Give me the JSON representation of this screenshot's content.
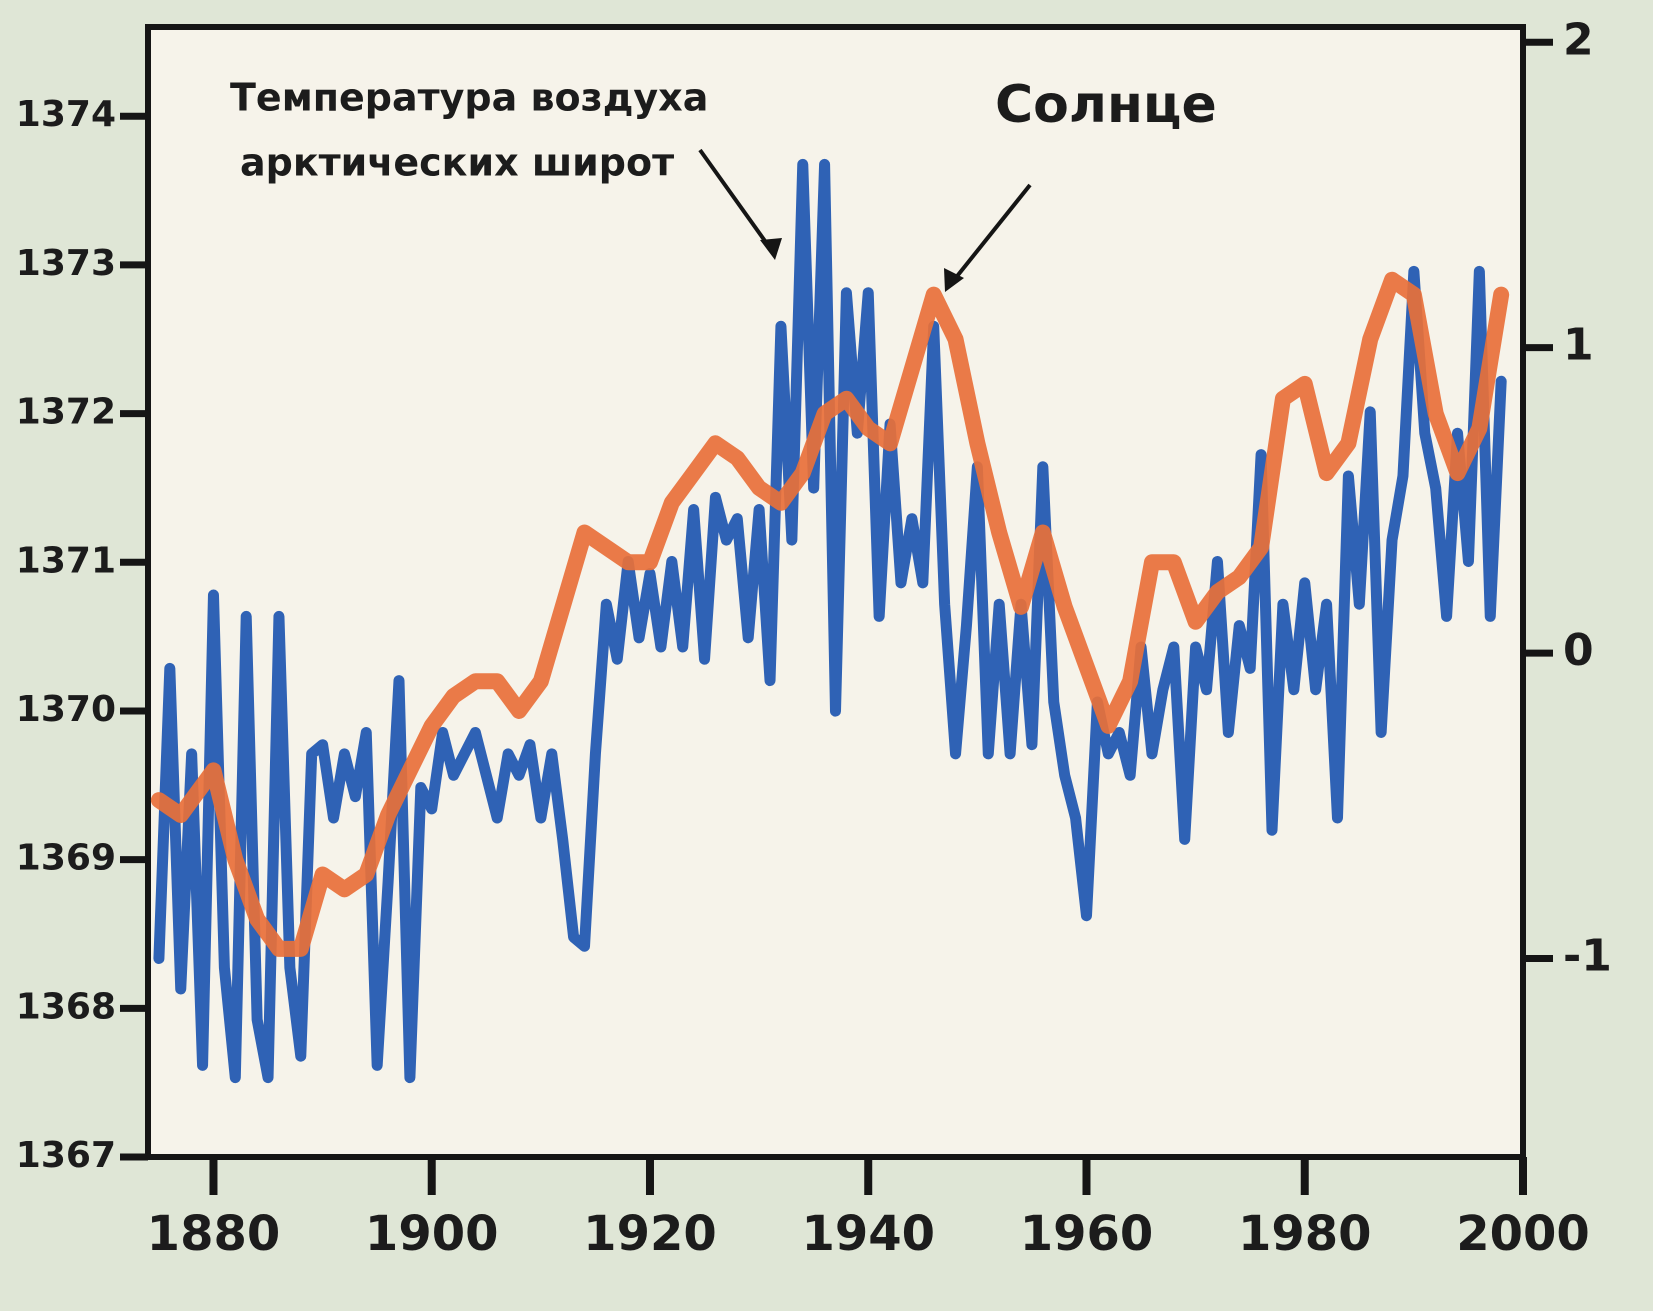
{
  "chart_data": {
    "type": "line",
    "annotations": [
      "Температура воздуха",
      "арктических широт",
      "Солнце"
    ],
    "xlim": [
      1874,
      2000
    ],
    "xticks": [
      1880,
      1900,
      1920,
      1940,
      1960,
      1980,
      2000
    ],
    "ylim": [
      1367,
      1374.6
    ],
    "yticks": [
      1367,
      1368,
      1369,
      1370,
      1371,
      1372,
      1373,
      1374
    ],
    "y2lim": [
      -1.65,
      2.05
    ],
    "y2ticks": [
      -1,
      0,
      1,
      2
    ],
    "series": [
      {
        "color": "#1d56b0",
        "axis": "y2",
        "x": [
          1875,
          1876,
          1877,
          1878,
          1879,
          1880,
          1881,
          1882,
          1883,
          1884,
          1885,
          1886,
          1887,
          1888,
          1889,
          1890,
          1891,
          1892,
          1893,
          1894,
          1895,
          1896,
          1897,
          1898,
          1899,
          1900,
          1901,
          1902,
          1903,
          1904,
          1905,
          1906,
          1907,
          1908,
          1909,
          1910,
          1911,
          1912,
          1913,
          1914,
          1915,
          1916,
          1917,
          1918,
          1919,
          1920,
          1921,
          1922,
          1923,
          1924,
          1925,
          1926,
          1927,
          1928,
          1929,
          1930,
          1931,
          1932,
          1933,
          1934,
          1935,
          1936,
          1937,
          1938,
          1939,
          1940,
          1941,
          1942,
          1943,
          1944,
          1945,
          1946,
          1947,
          1948,
          1949,
          1950,
          1951,
          1952,
          1953,
          1954,
          1955,
          1956,
          1957,
          1958,
          1959,
          1960,
          1961,
          1962,
          1963,
          1964,
          1965,
          1966,
          1967,
          1968,
          1969,
          1970,
          1971,
          1972,
          1973,
          1974,
          1975,
          1976,
          1977,
          1978,
          1979,
          1980,
          1981,
          1982,
          1983,
          1984,
          1985,
          1986,
          1987,
          1988,
          1989,
          1990,
          1991,
          1992,
          1993,
          1994,
          1995,
          1996,
          1997,
          1998
        ],
        "values": [
          -1.0,
          -0.05,
          -1.1,
          -0.33,
          -1.35,
          0.19,
          -1.03,
          -1.39,
          0.12,
          -1.2,
          -1.39,
          0.12,
          -1.03,
          -1.32,
          -0.33,
          -0.3,
          -0.54,
          -0.33,
          -0.47,
          -0.26,
          -1.35,
          -0.75,
          -0.09,
          -1.39,
          -0.44,
          -0.51,
          -0.26,
          -0.4,
          -0.33,
          -0.26,
          -0.4,
          -0.54,
          -0.33,
          -0.4,
          -0.3,
          -0.54,
          -0.33,
          -0.61,
          -0.93,
          -0.96,
          -0.33,
          0.16,
          -0.02,
          0.3,
          0.05,
          0.26,
          0.02,
          0.3,
          0.02,
          0.47,
          -0.02,
          0.51,
          0.37,
          0.44,
          0.05,
          0.47,
          -0.09,
          1.07,
          0.37,
          1.6,
          0.54,
          1.6,
          -0.19,
          1.18,
          0.72,
          1.18,
          0.12,
          0.75,
          0.23,
          0.44,
          0.23,
          1.07,
          0.16,
          -0.33,
          0.09,
          0.61,
          -0.33,
          0.16,
          -0.33,
          0.16,
          -0.3,
          0.61,
          -0.16,
          -0.4,
          -0.54,
          -0.86,
          -0.16,
          -0.33,
          -0.26,
          -0.4,
          0.02,
          -0.33,
          -0.12,
          0.02,
          -0.61,
          0.02,
          -0.12,
          0.3,
          -0.26,
          0.09,
          -0.05,
          0.65,
          -0.58,
          0.16,
          -0.12,
          0.23,
          -0.12,
          0.16,
          -0.54,
          0.58,
          0.16,
          0.79,
          -0.26,
          0.37,
          0.58,
          1.25,
          0.72,
          0.54,
          0.12,
          0.72,
          0.3,
          1.25,
          0.12,
          0.89
        ]
      },
      {
        "color": "#e8703a",
        "x": [
          1875,
          1877,
          1878,
          1880,
          1882,
          1884,
          1886,
          1888,
          1890,
          1892,
          1894,
          1896,
          1898,
          1900,
          1902,
          1904,
          1906,
          1908,
          1910,
          1912,
          1914,
          1916,
          1918,
          1920,
          1922,
          1924,
          1926,
          1928,
          1930,
          1932,
          1934,
          1936,
          1938,
          1940,
          1942,
          1944,
          1946,
          1948,
          1950,
          1952,
          1954,
          1956,
          1958,
          1960,
          1962,
          1964,
          1966,
          1968,
          1970,
          1972,
          1974,
          1976,
          1978,
          1980,
          1982,
          1984,
          1986,
          1988,
          1990,
          1992,
          1994,
          1996,
          1998
        ],
        "values": [
          1369.4,
          1369.3,
          1369.4,
          1369.6,
          1369.0,
          1368.6,
          1368.4,
          1368.4,
          1368.9,
          1368.8,
          1368.9,
          1369.3,
          1369.6,
          1369.9,
          1370.1,
          1370.2,
          1370.2,
          1370.0,
          1370.2,
          1370.7,
          1371.2,
          1371.1,
          1371.0,
          1371.0,
          1371.4,
          1371.6,
          1371.8,
          1371.7,
          1371.5,
          1371.4,
          1371.6,
          1372.0,
          1372.1,
          1371.9,
          1371.8,
          1372.3,
          1372.8,
          1372.5,
          1371.8,
          1371.2,
          1370.7,
          1371.2,
          1370.7,
          1370.3,
          1369.9,
          1370.2,
          1371.0,
          1371.0,
          1370.6,
          1370.8,
          1370.9,
          1371.1,
          1372.1,
          1372.2,
          1371.6,
          1371.8,
          1372.5,
          1372.9,
          1372.8,
          1372.0,
          1371.6,
          1371.9,
          1372.8
        ]
      }
    ]
  }
}
